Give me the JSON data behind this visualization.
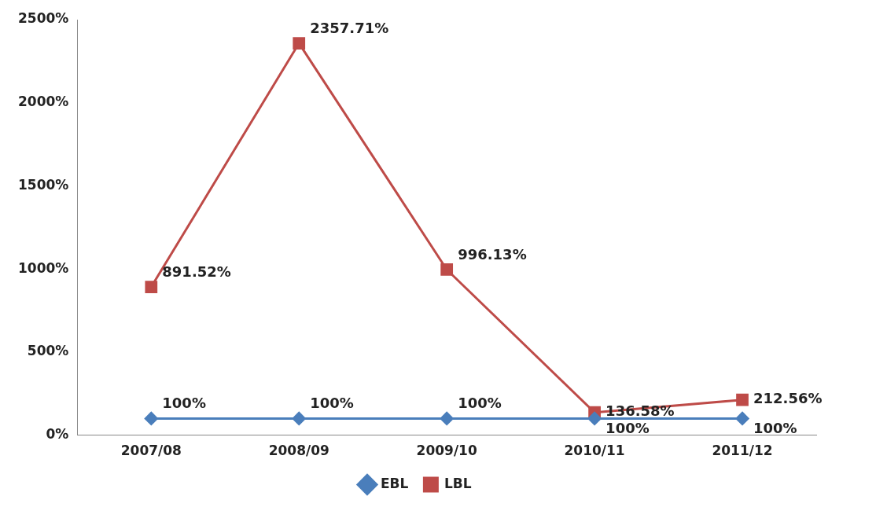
{
  "chart_data": {
    "type": "line",
    "categories": [
      "2007/08",
      "2008/09",
      "2009/10",
      "2010/11",
      "2011/12"
    ],
    "series": [
      {
        "name": "EBL",
        "color": "#4a7ebb",
        "marker": "diamond",
        "values": [
          100,
          100,
          100,
          100,
          100
        ],
        "value_labels": [
          "100%",
          "100%",
          "100%",
          "100%",
          "100%"
        ]
      },
      {
        "name": "LBL",
        "color": "#be4b48",
        "marker": "square",
        "values": [
          891.52,
          2357.71,
          996.13,
          136.58,
          212.56
        ],
        "value_labels": [
          "891.52%",
          "2357.71%",
          "996.13%",
          "136.58%",
          "212.56%"
        ]
      }
    ],
    "ylim": [
      0,
      2500
    ],
    "yticks": [
      {
        "value": 0,
        "label": "0%"
      },
      {
        "value": 500,
        "label": "500%"
      },
      {
        "value": 1000,
        "label": "1000%"
      },
      {
        "value": 1500,
        "label": "1500%"
      },
      {
        "value": 2000,
        "label": "2000%"
      },
      {
        "value": 2500,
        "label": "2500%"
      }
    ],
    "grid": false,
    "legend": "bottom"
  }
}
